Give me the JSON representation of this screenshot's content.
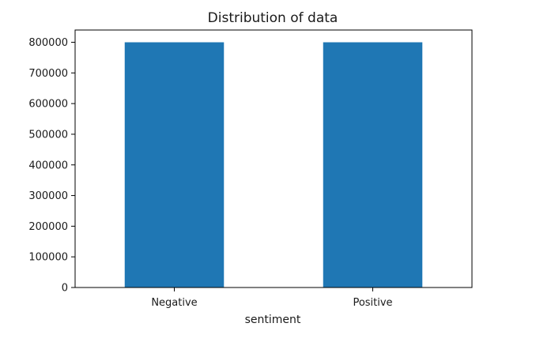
{
  "chart_data": {
    "type": "bar",
    "title": "Distribution of data",
    "xlabel": "sentiment",
    "ylabel": "",
    "categories": [
      "Negative",
      "Positive"
    ],
    "values": [
      800000,
      800000
    ],
    "ylim": [
      0,
      840000
    ],
    "yticks": [
      0,
      100000,
      200000,
      300000,
      400000,
      500000,
      600000,
      700000,
      800000
    ],
    "ytick_labels": [
      "0",
      "100000",
      "200000",
      "300000",
      "400000",
      "500000",
      "600000",
      "700000",
      "800000"
    ],
    "grid": false,
    "legend": "none",
    "bar_color": "#1f77b4"
  }
}
